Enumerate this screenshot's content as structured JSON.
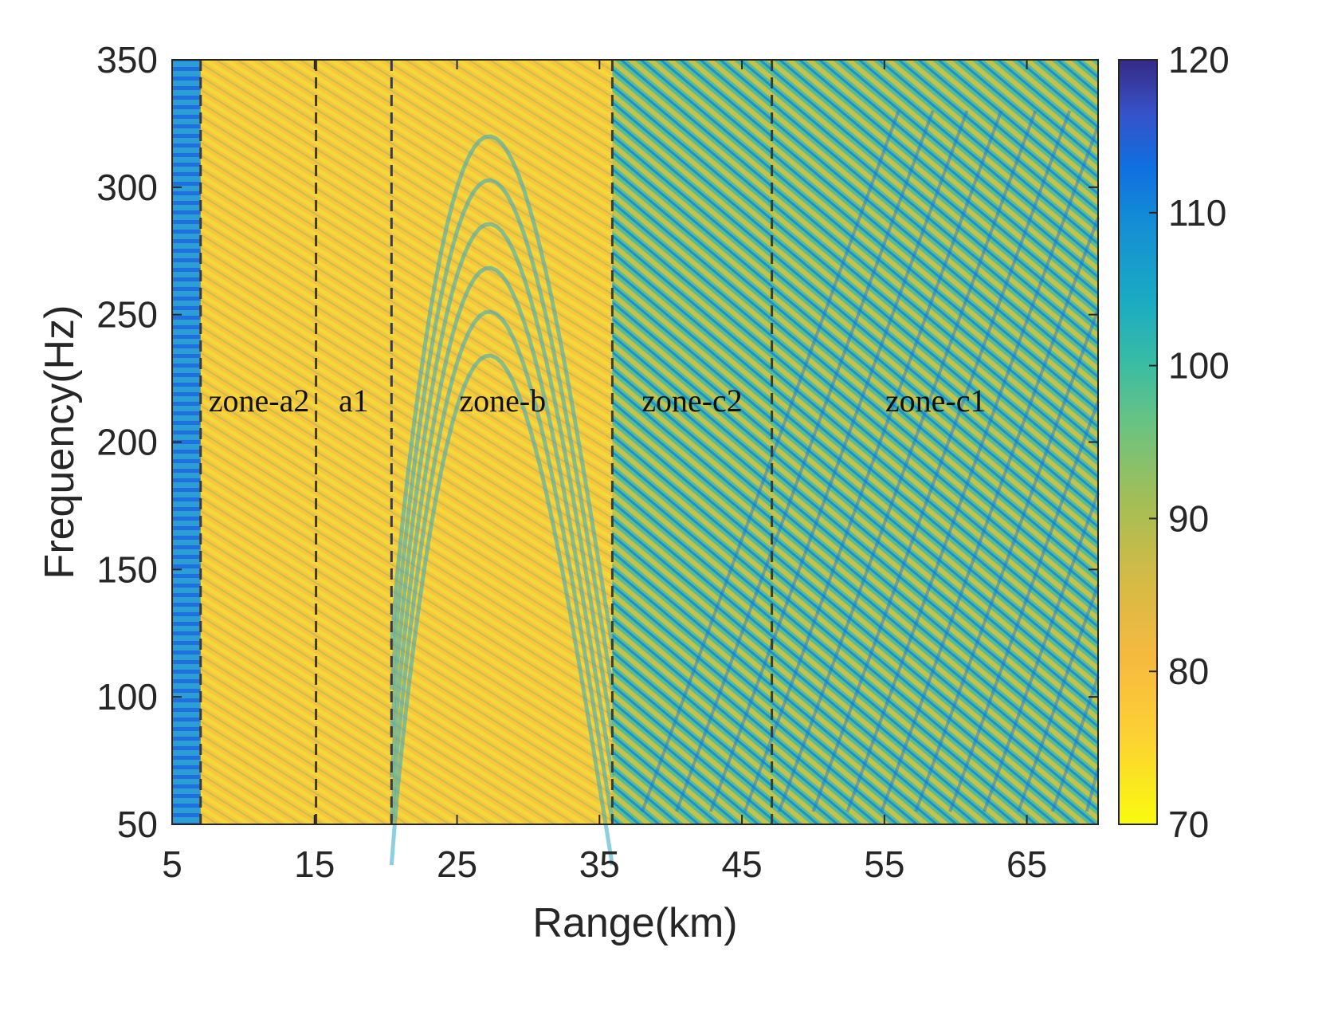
{
  "chart_data": {
    "type": "heatmap",
    "title": "",
    "xlabel": "Range(km)",
    "ylabel": "Frequency(Hz)",
    "xlim": [
      5,
      70
    ],
    "ylim": [
      50,
      350
    ],
    "x_ticks": [
      5,
      15,
      25,
      35,
      45,
      55,
      65
    ],
    "y_ticks": [
      50,
      100,
      150,
      200,
      250,
      300,
      350
    ],
    "colorbar": {
      "limits": [
        70,
        120
      ],
      "ticks": [
        70,
        80,
        90,
        100,
        110,
        120
      ],
      "colormap": "parula (reversed: 70 yellow to 120 dark blue)"
    },
    "zone_boundaries_km": [
      7,
      15.1,
      20.4,
      35.9,
      47.1
    ],
    "zone_labels": [
      {
        "text": "zone-a2",
        "x": 11.1,
        "y": 212
      },
      {
        "text": "a1",
        "x": 17.75,
        "y": 212
      },
      {
        "text": "zone-b",
        "x": 28.2,
        "y": 212
      },
      {
        "text": "zone-c2",
        "x": 41.5,
        "y": 212
      },
      {
        "text": "zone-c1",
        "x": 58.6,
        "y": 212
      }
    ]
  }
}
